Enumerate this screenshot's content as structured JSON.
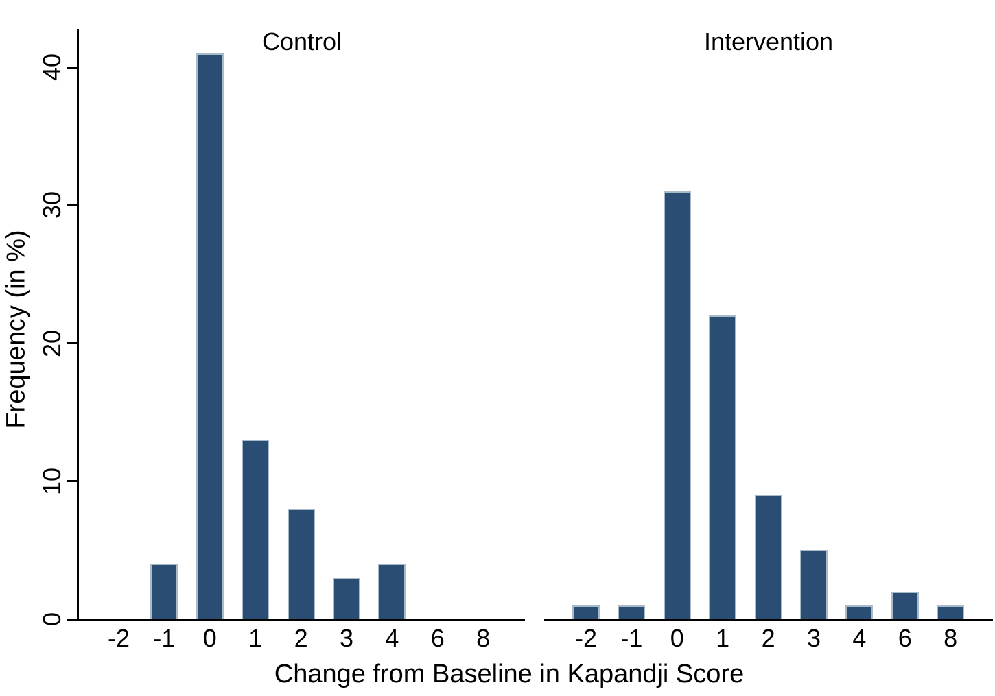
{
  "chart_data": {
    "type": "bar",
    "title": "",
    "xlabel": "Change from Baseline in Kapandji Score",
    "ylabel": "Frequency (in %)",
    "categories": [
      "-2",
      "-1",
      "0",
      "1",
      "2",
      "3",
      "4",
      "6",
      "8"
    ],
    "panels": [
      {
        "title": "Control",
        "values": [
          0,
          4,
          41,
          13,
          8,
          3,
          4,
          0,
          0
        ]
      },
      {
        "title": "Intervention",
        "values": [
          1,
          1,
          31,
          22,
          9,
          5,
          1,
          2,
          1
        ]
      }
    ],
    "yticks": [
      0,
      10,
      20,
      30,
      40
    ],
    "ytick_labels": [
      "0",
      "10",
      "20",
      "30",
      "40"
    ],
    "ylim": [
      0,
      42.7
    ],
    "grid": false,
    "legend": false,
    "bar_color": "#2a4e73",
    "bar_border_color": "#a9bac9",
    "axis_color": "#000000",
    "text_color": "#000000",
    "background_color": "#ffffff"
  }
}
